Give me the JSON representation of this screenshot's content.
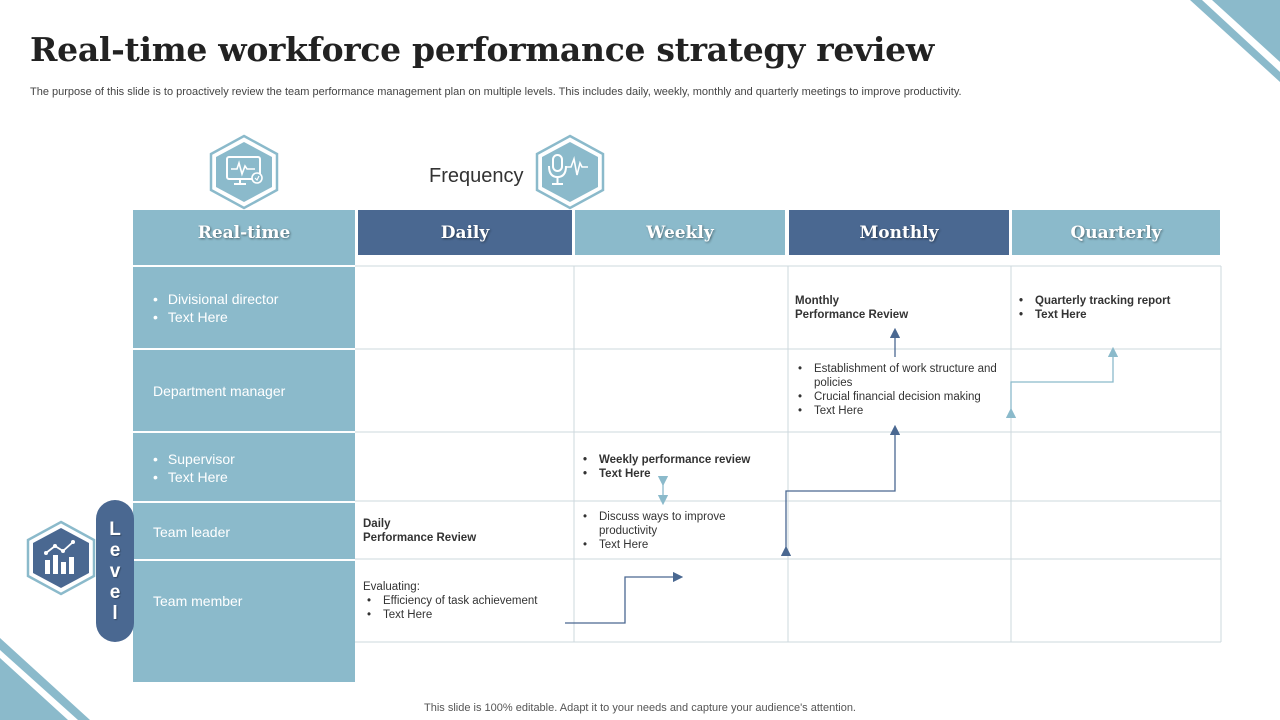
{
  "slide": {
    "title": "Real-time workforce performance strategy review",
    "subtitle": "The purpose of this slide is to proactively review the team performance management plan on multiple levels. This includes daily, weekly, monthly and quarterly meetings to improve productivity.",
    "footer": "This slide is 100% editable. Adapt it to your needs and capture your audience's attention."
  },
  "icons": {
    "monitor": "monitor-pulse-icon",
    "microphone": "microphone-pulse-icon",
    "chart": "bar-chart-icon"
  },
  "frequency_label": "Frequency",
  "level_letters": [
    "L",
    "e",
    "v",
    "e",
    "l"
  ],
  "levels": {
    "header": "Real-time",
    "rows": [
      {
        "bullets": [
          "Divisional director",
          "Text Here"
        ]
      },
      {
        "text": "Department manager"
      },
      {
        "bullets": [
          "Supervisor",
          "Text Here"
        ]
      },
      {
        "text": "Team leader"
      },
      {
        "text": "Team member"
      }
    ]
  },
  "columns": [
    "Daily",
    "Weekly",
    "Monthly",
    "Quarterly"
  ],
  "cells": {
    "quarterly_report": [
      "Quarterly tracking report",
      "Text Here"
    ],
    "monthly_review": [
      "Monthly",
      "Performance Review"
    ],
    "monthly_bullets": [
      "Establishment of work structure and policies",
      "Crucial financial decision making",
      "Text Here"
    ],
    "weekly_review": [
      "Weekly performance review",
      "Text Here"
    ],
    "weekly_bullets": [
      "Discuss ways to improve productivity",
      "Text Here"
    ],
    "daily_review": [
      "Daily",
      "Performance Review"
    ],
    "daily_evaluating": "Evaluating:",
    "daily_bullets": [
      "Efficiency of task achievement",
      "Text Here"
    ]
  },
  "colors": {
    "dark_blue": "#4a6891",
    "light_blue": "#8bbacb",
    "grid_line": "#cdd8de"
  }
}
